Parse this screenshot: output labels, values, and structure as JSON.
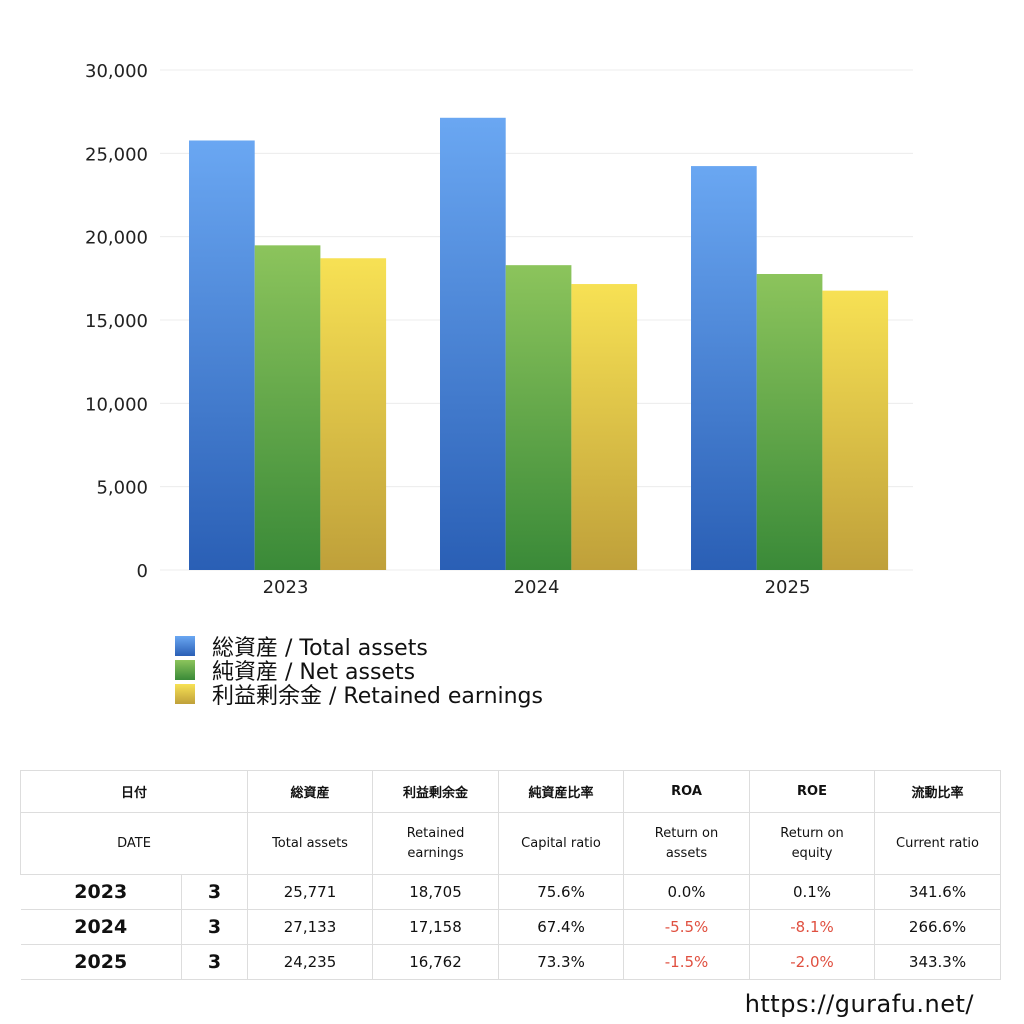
{
  "chart_data": {
    "type": "bar",
    "categories": [
      "2023",
      "2024",
      "2025"
    ],
    "series": [
      {
        "name": "総資産 / Total assets",
        "values": [
          25771,
          27133,
          24235
        ]
      },
      {
        "name": "純資産 / Net assets",
        "values": [
          19480,
          18290,
          17760
        ]
      },
      {
        "name": "利益剰余金 / Retained earnings",
        "values": [
          18705,
          17158,
          16762
        ]
      }
    ],
    "ylim": [
      0,
      30000
    ],
    "yticks": [
      "0",
      "5,000",
      "10,000",
      "15,000",
      "20,000",
      "25,000",
      "30,000"
    ],
    "grid": true,
    "legend_position": "bottom-left",
    "colors": {
      "total_top": "#6aa7f2",
      "total_bottom": "#2a5fb5",
      "net_top": "#8cc45c",
      "net_bottom": "#3a8a38",
      "retained_top": "#f7e154",
      "retained_bottom": "#bfa03a"
    }
  },
  "table": {
    "header_jp": [
      "日付",
      "総資産",
      "利益剰余金",
      "純資産比率",
      "ROA",
      "ROE",
      "流動比率"
    ],
    "header_en": [
      "DATE",
      "Total assets",
      "Retained earnings",
      "Capital ratio",
      "Return on assets",
      "Return on equity",
      "Current ratio"
    ],
    "rows": [
      {
        "year": "2023",
        "month": "3",
        "total": "25,771",
        "retained": "18,705",
        "capital": "75.6%",
        "roa": "0.0%",
        "roe": "0.1%",
        "current": "341.6%"
      },
      {
        "year": "2024",
        "month": "3",
        "total": "27,133",
        "retained": "17,158",
        "capital": "67.4%",
        "roa": "-5.5%",
        "roe": "-8.1%",
        "current": "266.6%"
      },
      {
        "year": "2025",
        "month": "3",
        "total": "24,235",
        "retained": "16,762",
        "capital": "73.3%",
        "roa": "-1.5%",
        "roe": "-2.0%",
        "current": "343.3%"
      }
    ]
  },
  "watermark": "https://gurafu.net/"
}
